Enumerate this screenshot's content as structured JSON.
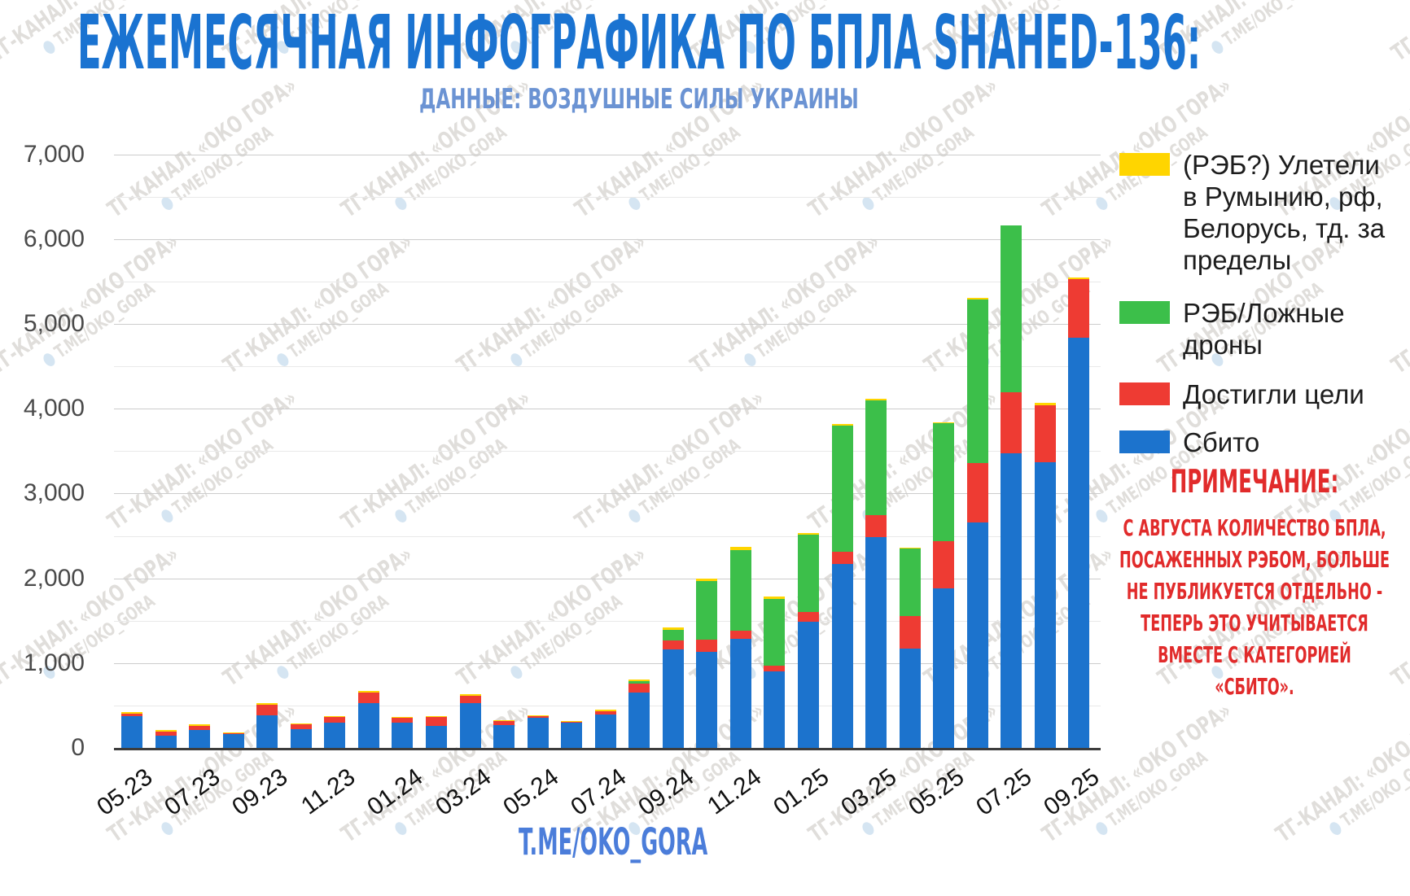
{
  "title": "ЕЖЕМЕСЯЧНАЯ ИНФОГРАФИКА ПО БПЛА SHAHED-136:",
  "subtitle": "ДАННЫЕ: ВОЗДУШНЫЕ СИЛЫ УКРАИНЫ",
  "footer": "T.ME/OKO_GORA",
  "watermark": {
    "line1": "ТГ-КАНАЛ: «ОКО ГОРА»",
    "line2": "T.ME/OKO_GORA"
  },
  "note": {
    "title": "ПРИМЕЧАНИЕ:",
    "lines": [
      "С АВГУСТА КОЛИЧЕСТВО БПЛА,",
      "ПОСАЖЕННЫХ РЭБОМ, БОЛЬШЕ",
      "НЕ ПУБЛИКУЕТСЯ ОТДЕЛЬНО -",
      "ТЕПЕРЬ ЭТО УЧИТЫВАЕТСЯ",
      "ВМЕСТЕ С КАТЕГОРИЕЙ",
      "«СБИТО»."
    ]
  },
  "legend": [
    {
      "label": "(РЭБ?) Улетели в Румынию, рф, Белорусь, тд. за пределы",
      "color": "#FFD500"
    },
    {
      "label": "РЭБ/Ложные дроны",
      "color": "#3CBF4A"
    },
    {
      "label": "Достигли цели",
      "color": "#EE3B33"
    },
    {
      "label": "Сбито",
      "color": "#1C73CD"
    }
  ],
  "chart_data": {
    "type": "bar",
    "stacked": true,
    "title": "Ежемесячная инфографика по БПЛА Shahed-136",
    "ylim": [
      0,
      7000
    ],
    "grid": true,
    "ytick_labels": [
      "0",
      "1,000",
      "2,000",
      "3,000",
      "4,000",
      "5,000",
      "6,000",
      "7,000"
    ],
    "xtick_labels": [
      "05.23",
      "07.23",
      "09.23",
      "11.23",
      "01.24",
      "03.24",
      "05.24",
      "07.24",
      "09.24",
      "11.24",
      "01.25",
      "03.25",
      "05.25",
      "07.25",
      "09.25"
    ],
    "categories": [
      "05.23",
      "06.23",
      "07.23",
      "08.23",
      "09.23",
      "10.23",
      "11.23",
      "12.23",
      "01.24",
      "02.24",
      "03.24",
      "04.24",
      "05.24",
      "06.24",
      "07.24",
      "08.24",
      "09.24",
      "10.24",
      "11.24",
      "12.24",
      "01.25",
      "02.25",
      "03.25",
      "04.25",
      "05.25",
      "06.25",
      "07.25",
      "08.25",
      "09.25"
    ],
    "series": [
      {
        "name": "Сбито",
        "color": "#1C73CD",
        "values": [
          375,
          145,
          210,
          165,
          385,
          217,
          297,
          527,
          295,
          262,
          525,
          265,
          355,
          300,
          390,
          650,
          1165,
          1130,
          1290,
          905,
          1490,
          2165,
          2490,
          1170,
          1880,
          2655,
          3475,
          3365,
          4840
        ]
      },
      {
        "name": "Достигли цели",
        "color": "#EE3B33",
        "values": [
          25,
          50,
          50,
          12,
          125,
          60,
          64,
          122,
          60,
          105,
          90,
          55,
          15,
          10,
          45,
          110,
          100,
          150,
          90,
          60,
          110,
          150,
          255,
          380,
          555,
          700,
          720,
          675,
          690
        ]
      },
      {
        "name": "РЭБ/Ложные дроны",
        "color": "#3CBF4A",
        "values": [
          0,
          0,
          0,
          0,
          0,
          0,
          0,
          0,
          0,
          0,
          0,
          0,
          0,
          0,
          0,
          30,
          130,
          690,
          950,
          795,
          915,
          1485,
          1355,
          800,
          1390,
          1935,
          1965,
          0,
          0
        ]
      },
      {
        "name": "(РЭБ?) Улетели в Румынию, рф, Белорусь, тд. за пределы",
        "color": "#FFD500",
        "values": [
          20,
          15,
          18,
          10,
          15,
          13,
          11,
          19,
          10,
          8,
          18,
          10,
          15,
          10,
          12,
          12,
          25,
          30,
          40,
          25,
          15,
          20,
          20,
          10,
          15,
          20,
          0,
          25,
          15
        ]
      }
    ]
  }
}
